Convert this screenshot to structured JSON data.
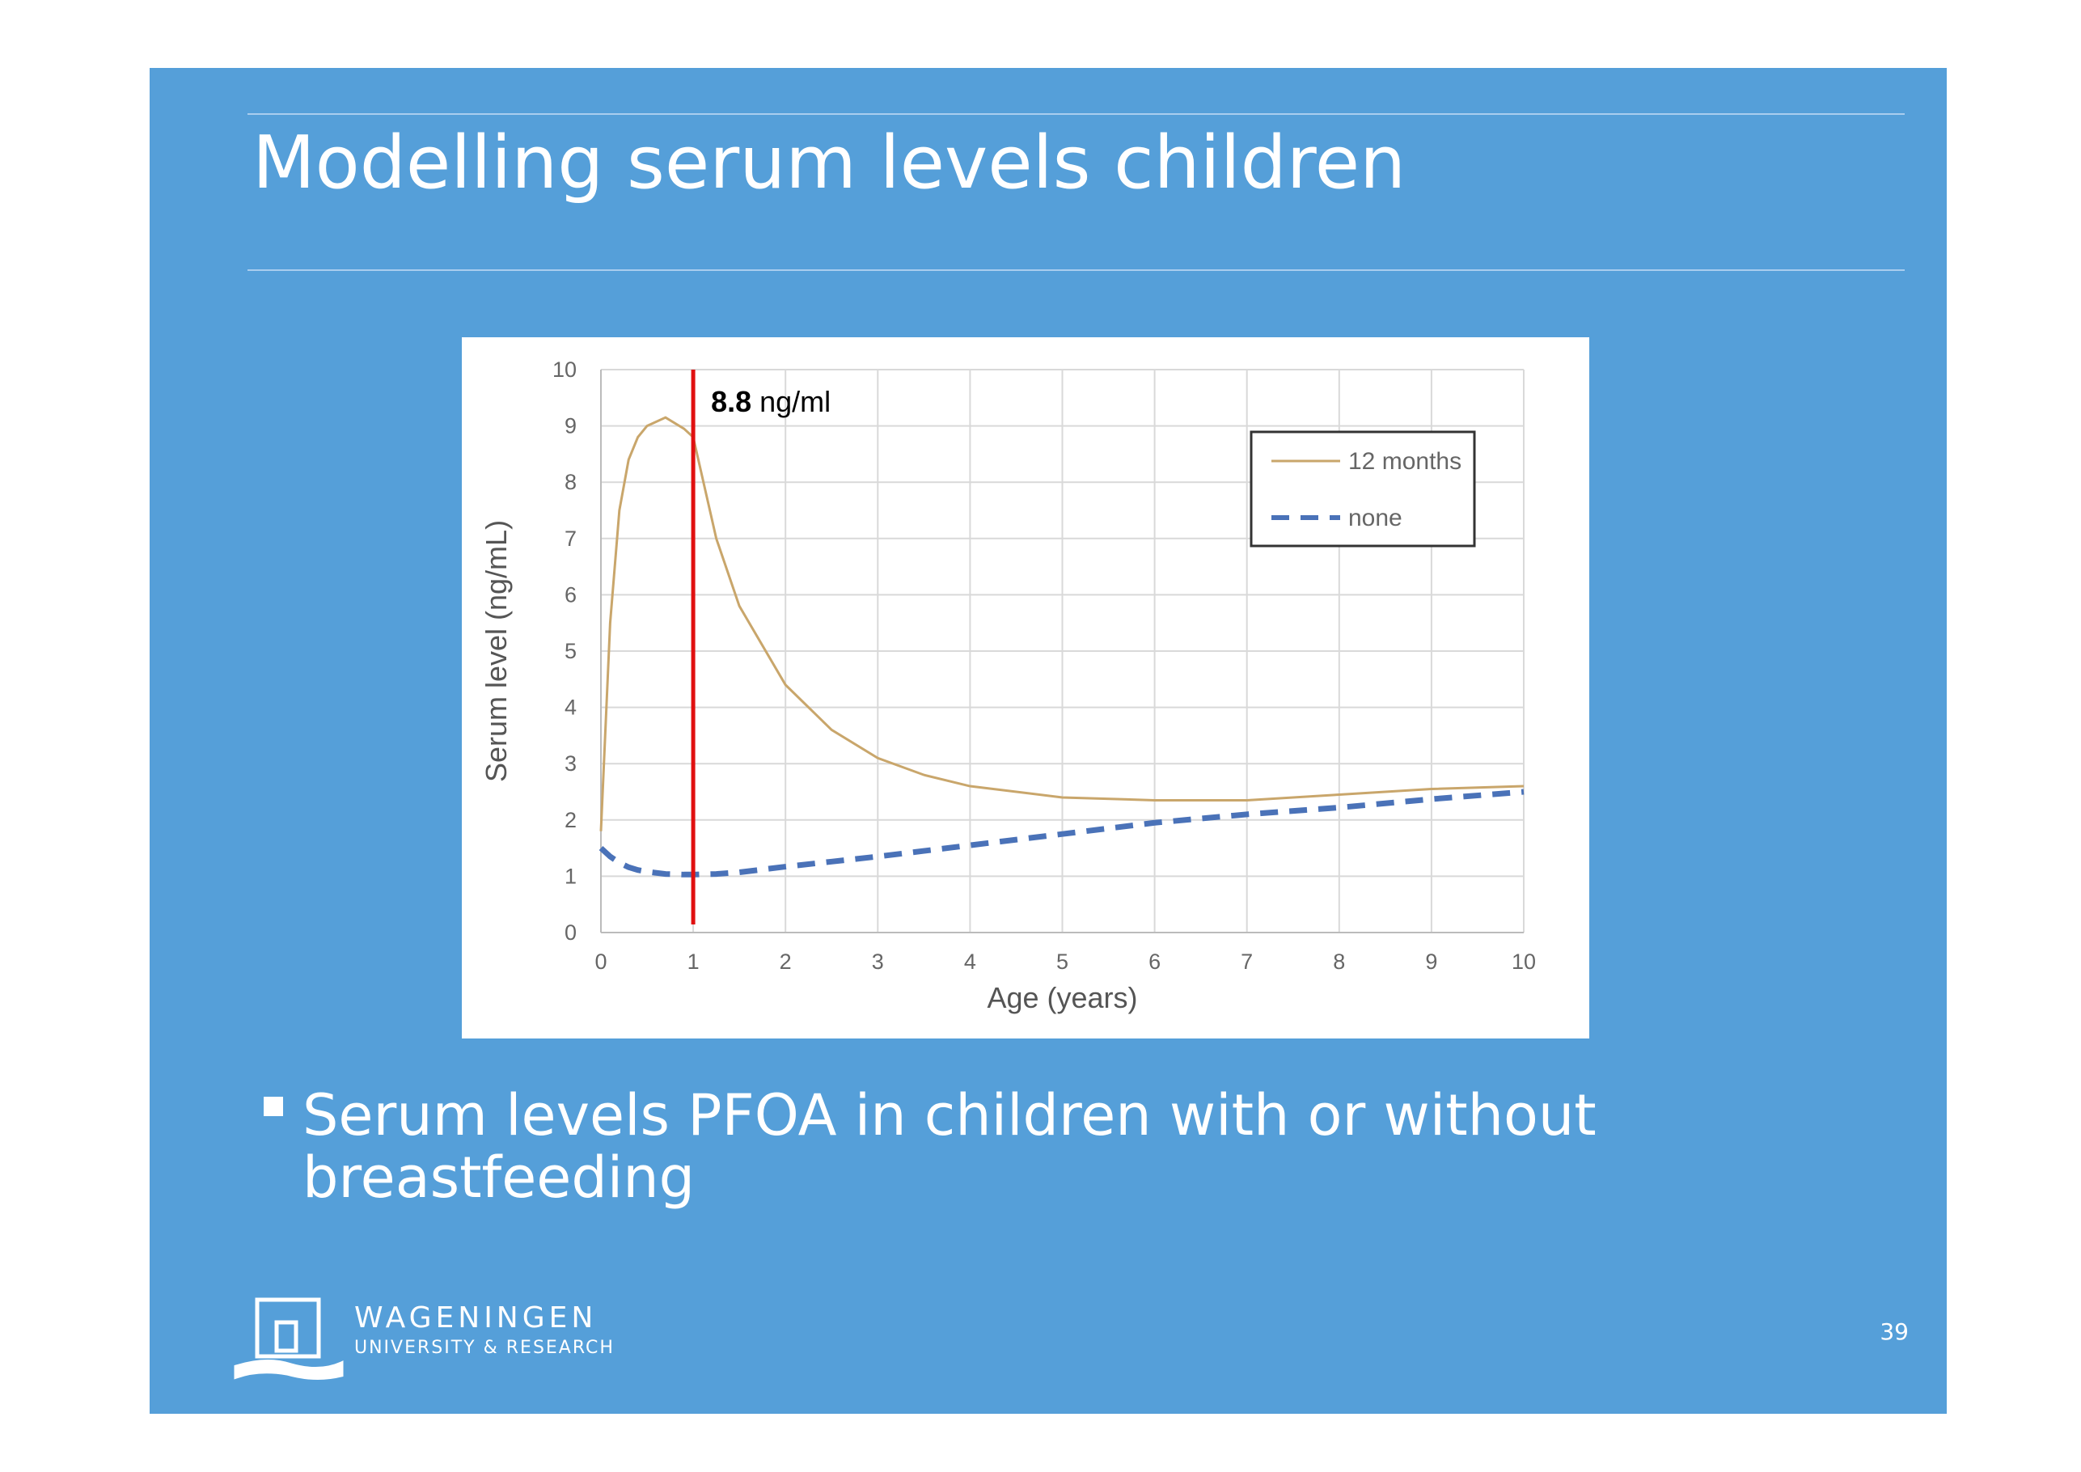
{
  "slide": {
    "title": "Modelling serum levels children",
    "bullet": [
      "Serum levels PFOA in children with or without",
      "breastfeeding"
    ],
    "logo": {
      "name": "WAGENINGEN",
      "subtitle": "UNIVERSITY & RESEARCH"
    },
    "page_number": 39
  },
  "chart_data": {
    "type": "line",
    "x_label": "Age (years)",
    "y_label": "Serum level (ng/mL)",
    "x": [
      0,
      0.1,
      0.2,
      0.3,
      0.4,
      0.5,
      0.7,
      0.9,
      1,
      1.25,
      1.5,
      2,
      2.5,
      3,
      3.5,
      4,
      5,
      6,
      7,
      8,
      9,
      10
    ],
    "series": [
      {
        "name": "12 months",
        "color": "#c9a66b",
        "line_style": "solid",
        "values": [
          1.8,
          5.5,
          7.5,
          8.4,
          8.8,
          9.0,
          9.15,
          8.95,
          8.8,
          7.0,
          5.8,
          4.4,
          3.6,
          3.1,
          2.8,
          2.6,
          2.4,
          2.35,
          2.35,
          2.45,
          2.55,
          2.6
        ]
      },
      {
        "name": "none",
        "color": "#4a72b8",
        "line_style": "dashed",
        "values": [
          1.5,
          1.35,
          1.24,
          1.16,
          1.11,
          1.08,
          1.04,
          1.03,
          1.03,
          1.04,
          1.07,
          1.17,
          1.26,
          1.35,
          1.45,
          1.55,
          1.75,
          1.95,
          2.1,
          2.22,
          2.37,
          2.5
        ]
      }
    ],
    "xlim": [
      0,
      10
    ],
    "ylim": [
      0,
      10
    ],
    "xticks": [
      0,
      1,
      2,
      3,
      4,
      5,
      6,
      7,
      8,
      9,
      10
    ],
    "yticks": [
      0,
      1,
      2,
      3,
      4,
      5,
      6,
      7,
      8,
      9,
      10
    ],
    "grid": true,
    "legend_position": "upper-right",
    "annotation": {
      "x": 1,
      "value": 8.8,
      "unit": "ng/ml",
      "color": "#e01010"
    }
  }
}
